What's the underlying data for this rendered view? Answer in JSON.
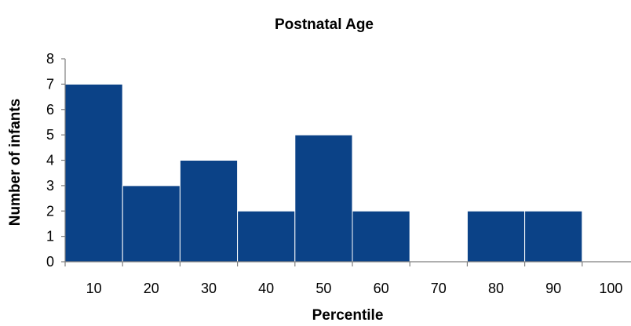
{
  "chart_data": {
    "type": "bar",
    "title": "Postnatal Age",
    "xlabel": "Percentile",
    "ylabel": "Number of infants",
    "categories": [
      "10",
      "20",
      "30",
      "40",
      "50",
      "60",
      "70",
      "80",
      "90",
      "100"
    ],
    "values": [
      7,
      3,
      4,
      2,
      5,
      2,
      0,
      2,
      2,
      0
    ],
    "ylim": [
      0,
      8
    ],
    "yticks": [
      "0",
      "1",
      "2",
      "3",
      "4",
      "5",
      "6",
      "7",
      "8"
    ],
    "grid": false,
    "legend": "none",
    "colors": {
      "bar": "#0b4287",
      "axis": "#7f7f7f"
    }
  }
}
